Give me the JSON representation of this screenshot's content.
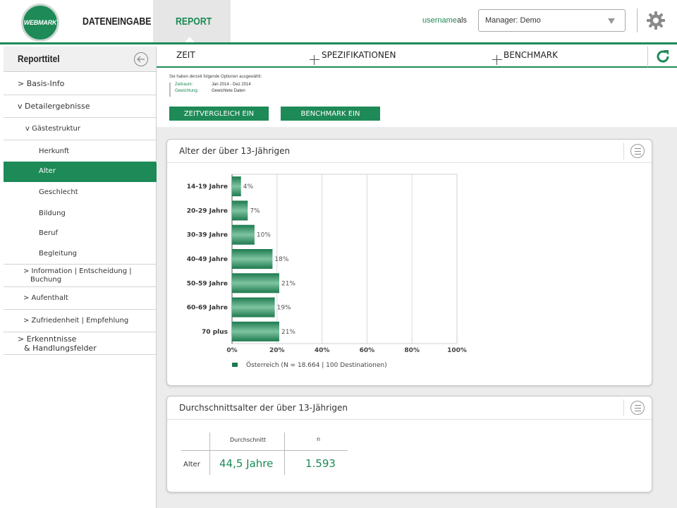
{
  "header": {
    "logo_text": "WEBMARK",
    "nav": {
      "dateneingabe": "DATENEINGABE",
      "report": "REPORT"
    },
    "username": "username",
    "als": "als",
    "manager_select": "Manager: Demo"
  },
  "sidebar": {
    "title": "Reporttitel",
    "items": [
      {
        "label": "> Basis-Info"
      },
      {
        "label": "v Detailergebnisse"
      },
      {
        "label": "v Gästestruktur"
      },
      {
        "label": "Herkunft"
      },
      {
        "label": "Alter"
      },
      {
        "label": "Geschlecht"
      },
      {
        "label": "Bildung"
      },
      {
        "label": "Beruf"
      },
      {
        "label": "Begleitung"
      },
      {
        "label": "> Information | Entscheidung |",
        "label2": "Buchung"
      },
      {
        "label": "> Aufenthalt"
      },
      {
        "label": "> Zufriedenheit | Empfehlung"
      },
      {
        "label": "> Erkenntnisse",
        "label2": "& Handlungsfelder"
      }
    ]
  },
  "filterbar": {
    "zeit": "ZEIT",
    "spezifikationen": "SPEZIFIKATIONEN",
    "benchmark": "BENCHMARK"
  },
  "options": {
    "title": "Sie haben derzeit folgende Optionen ausgewählt:",
    "zeitraum_label": "Zeitraum:",
    "zeitraum_value": "Jan 2014 - Dez 2014",
    "gewichtung_label": "Gewichtung:",
    "gewichtung_value": "Gewichtete Daten",
    "btn_zeitvergleich": "ZEITVERGLEICH EIN",
    "btn_benchmark": "BENCHMARK EIN"
  },
  "colors": {
    "accent": "#1e8a57",
    "bar_dark": "#1e7a4e",
    "bar_light": "#7fc4a2"
  },
  "chart_card": {
    "title": "Alter der über 13-Jährigen"
  },
  "chart_data": {
    "type": "bar",
    "orientation": "horizontal",
    "categories": [
      "14-19 Jahre",
      "20-29 Jahre",
      "30-39 Jahre",
      "40-49 Jahre",
      "50-59 Jahre",
      "60-69 Jahre",
      "70 plus"
    ],
    "series": [
      {
        "name": "Österreich (N = 18.664 | 100 Destinationen)",
        "values": [
          4,
          7,
          10,
          18,
          21,
          19,
          21
        ]
      }
    ],
    "value_labels": [
      "4%",
      "7%",
      "10%",
      "18%",
      "21%",
      "19%",
      "21%"
    ],
    "xlim": [
      0,
      100
    ],
    "xticks": [
      "0%",
      "20%",
      "40%",
      "60%",
      "80%",
      "100%"
    ],
    "grid": "vertical",
    "legend": "bottom-left"
  },
  "table_card": {
    "title": "Durchschnittsalter der über 13-Jährigen",
    "col_durchschnitt": "Durchschnitt",
    "col_n": "n",
    "row_label": "Alter",
    "durchschnitt": "44,5 Jahre",
    "n": "1.593"
  }
}
